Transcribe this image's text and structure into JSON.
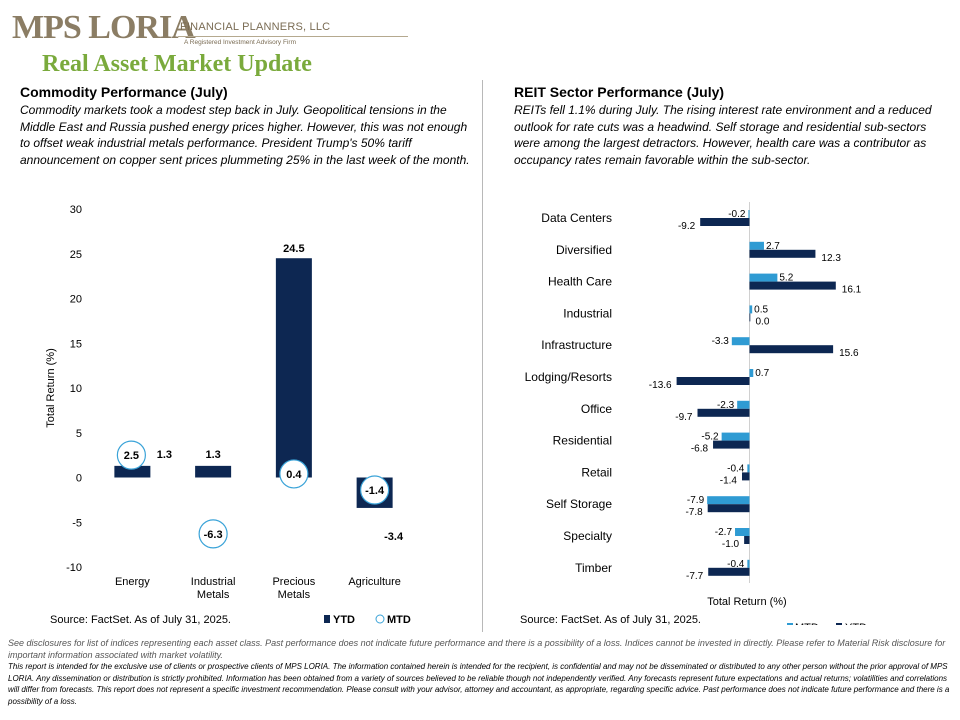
{
  "header": {
    "logo_main": "MPS LORIA",
    "logo_sub": "FINANCIAL PLANNERS, LLC",
    "logo_tagline": "A Registered Investment Advisory Firm",
    "page_title": "Real Asset Market Update"
  },
  "left": {
    "title": "Commodity Performance (July)",
    "text": "Commodity markets took a modest step back in July. Geopolitical tensions in the Middle East and Russia pushed energy prices higher. However, this was not enough to offset weak industrial metals performance. President Trump's 50% tariff announcement on copper sent prices plummeting 25% in the last week of the month.",
    "source": "Source: FactSet. As of July 31, 2025."
  },
  "right": {
    "title": "REIT Sector Performance (July)",
    "text": "REITs fell 1.1% during July. The rising interest rate environment and a reduced outlook for rate cuts was a headwind. Self storage and residential sub-sectors were among the largest detractors. However, health care was a contributor as occupancy rates remain favorable within the sub-sector.",
    "source": "Source: FactSet. As of July 31, 2025."
  },
  "colors": {
    "navy": "#0d2752",
    "light_blue": "#2f9bd3",
    "marker_ring": "#3aa3d8",
    "title_green": "#7aaa3c",
    "logo_brown": "#8b7d64"
  },
  "chart_data": [
    {
      "type": "bar",
      "categories": [
        "Energy",
        "Industrial Metals",
        "Precious Metals",
        "Agriculture"
      ],
      "category_lines": [
        [
          "Energy"
        ],
        [
          "Industrial",
          "Metals"
        ],
        [
          "Precious",
          "Metals"
        ],
        [
          "Agriculture"
        ]
      ],
      "series": [
        {
          "name": "YTD",
          "marker": "bar",
          "values": [
            1.3,
            1.3,
            24.5,
            -3.4
          ],
          "labels": [
            "1.3",
            "1.3",
            "24.5",
            "-3.4"
          ]
        },
        {
          "name": "MTD",
          "marker": "circle",
          "values": [
            2.5,
            -6.3,
            0.4,
            -1.4
          ],
          "labels": [
            "2.5",
            "-6.3",
            "0.4",
            "-1.4"
          ]
        }
      ],
      "ylabel": "Total Return (%)",
      "ylim": [
        -10,
        30
      ],
      "yticks": [
        -10,
        -5,
        0,
        5,
        10,
        15,
        20,
        25,
        30
      ],
      "ytick_labels": [
        "-10",
        "-5",
        "0",
        "5",
        "10",
        "15",
        "20",
        "25",
        "30"
      ],
      "grid": false,
      "legend": "bottom-right"
    },
    {
      "type": "bar",
      "orientation": "horizontal",
      "categories": [
        "Data Centers",
        "Diversified",
        "Health Care",
        "Industrial",
        "Infrastructure",
        "Lodging/Resorts",
        "Office",
        "Residential",
        "Retail",
        "Self Storage",
        "Specialty",
        "Timber"
      ],
      "series": [
        {
          "name": "MTD",
          "values": [
            -0.2,
            2.7,
            5.2,
            0.5,
            -3.3,
            0.7,
            -2.3,
            -5.2,
            -0.4,
            -7.9,
            -2.7,
            -0.4
          ],
          "labels": [
            "-0.2",
            "2.7",
            "5.2",
            "0.5",
            "-3.3",
            "0.7",
            "-2.3",
            "-5.2",
            "-0.4",
            "-7.9",
            "-2.7",
            "-0.4"
          ]
        },
        {
          "name": "YTD",
          "values": [
            -9.2,
            12.3,
            16.1,
            0.0,
            15.6,
            -13.6,
            -9.7,
            -6.8,
            -1.4,
            -7.8,
            -1.0,
            -7.7
          ],
          "labels": [
            "-9.2",
            "12.3",
            "16.1",
            "0.0",
            "15.6",
            "-13.6",
            "-9.7",
            "-6.8",
            "-1.4",
            "-7.8",
            "-1.0",
            "-7.7"
          ]
        }
      ],
      "xlabel": "Total Return (%)",
      "xlim": [
        -16,
        18
      ],
      "grid": false,
      "legend": "bottom-right"
    }
  ],
  "disclosures": {
    "line1": "See disclosures for list of indices representing each asset class. Past performance does not indicate future performance and there is a possibility of a loss. Indices cannot be invested in directly. Please refer to Material Risk disclosure for important information associated with market volatility.",
    "line2": "This report is intended for the exclusive use of clients or prospective clients of MPS LORIA. The information contained herein is intended for the recipient, is confidential and may not be disseminated or distributed to any other person without the prior approval of MPS LORIA. Any dissemination or distribution is strictly prohibited. Information has been obtained from a variety of sources believed to be reliable though not independently verified. Any forecasts represent future expectations and actual returns; volatilities and correlations will differ from forecasts. This report does not represent a specific investment recommendation. Please consult with your advisor, attorney and accountant, as appropriate, regarding specific advice. Past performance does not indicate future performance and there is a possibility of a loss."
  }
}
